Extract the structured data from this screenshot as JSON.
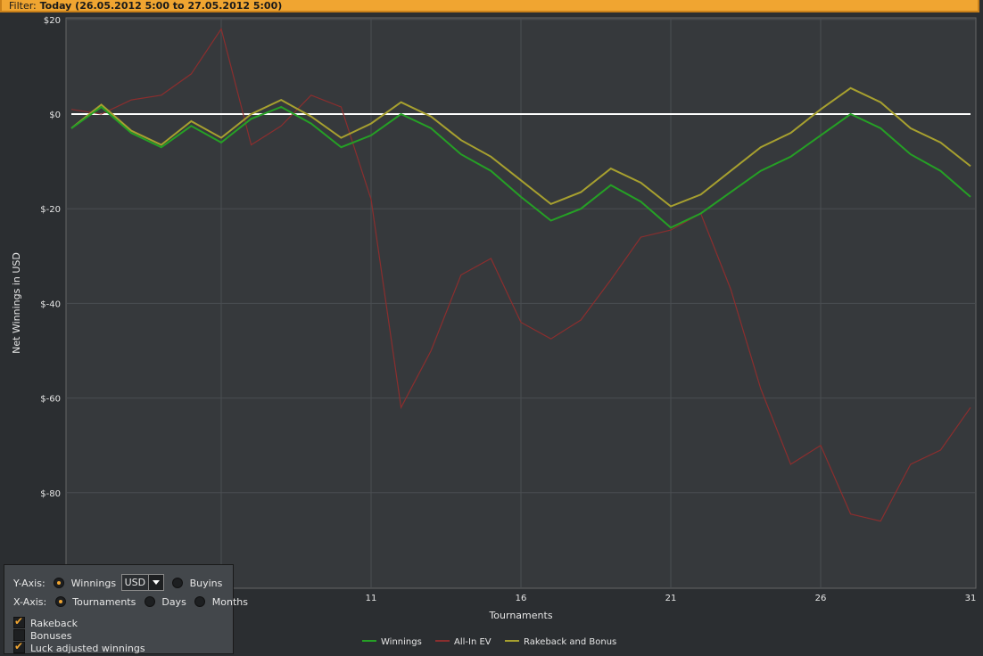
{
  "filter": {
    "label": "Filter:",
    "value": "Today (26.05.2012 5:00 to 27.05.2012 5:00)"
  },
  "colors": {
    "winnings": "#25a025",
    "allin_ev": "#8b2e2e",
    "rakeback": "#a7a02f",
    "zero": "#ffffff",
    "accent": "#f0a531"
  },
  "chart_data": {
    "type": "line",
    "ylabel": "Net Winnings in USD",
    "xlabel": "Tournaments",
    "ylim": [
      -100,
      20
    ],
    "xlim": [
      1,
      31
    ],
    "yticks": [
      20,
      0,
      -20,
      -40,
      -60,
      -80
    ],
    "ytick_labels": [
      "$20",
      "$0",
      "$-20",
      "$-40",
      "$-60",
      "$-80"
    ],
    "xticks": [
      11,
      16,
      21,
      26,
      31
    ],
    "xtick_labels": [
      "11",
      "16",
      "21",
      "26",
      "31"
    ],
    "grid": true,
    "legend_position": "bottom",
    "series": [
      {
        "name": "Winnings",
        "color": "#25a025",
        "x": [
          1,
          2,
          3,
          4,
          5,
          6,
          7,
          8,
          9,
          10,
          11,
          12,
          13,
          14,
          15,
          16,
          17,
          18,
          19,
          20,
          21,
          22,
          23,
          24,
          25,
          26,
          27,
          28,
          29,
          30,
          31
        ],
        "values": [
          -3,
          1.5,
          -4,
          -7,
          -2.5,
          -6,
          -1,
          1.5,
          -2,
          -7,
          -4.5,
          0,
          -3,
          -8.5,
          -12,
          -17.5,
          -22.5,
          -20,
          -15,
          -18.5,
          -24,
          -21,
          -16.5,
          -12,
          -9,
          -4.5,
          0,
          -3,
          -8.5,
          -12,
          -17.5
        ]
      },
      {
        "name": "All-In EV",
        "color": "#8b2e2e",
        "x": [
          1,
          2,
          3,
          4,
          5,
          6,
          7,
          8,
          9,
          10,
          11,
          12,
          13,
          14,
          15,
          16,
          17,
          18,
          19,
          20,
          21,
          22,
          23,
          24,
          25,
          26,
          27,
          28,
          29,
          30,
          31
        ],
        "values": [
          1,
          0,
          3,
          4,
          8.5,
          18,
          -6.5,
          -2.5,
          4,
          1.5,
          -18,
          -62,
          -50,
          -34,
          -30.5,
          -44,
          -47.5,
          -43.5,
          -35,
          -26,
          -24.5,
          -21,
          -37,
          -58,
          -74,
          -70,
          -84.5,
          -86,
          -74,
          -71,
          -62
        ]
      },
      {
        "name": "Rakeback and Bonus",
        "color": "#a7a02f",
        "x": [
          1,
          2,
          3,
          4,
          5,
          6,
          7,
          8,
          9,
          10,
          11,
          12,
          13,
          14,
          15,
          16,
          17,
          18,
          19,
          20,
          21,
          22,
          23,
          24,
          25,
          26,
          27,
          28,
          29,
          30,
          31
        ],
        "values": [
          -3,
          2,
          -3.5,
          -6.5,
          -1.5,
          -5,
          0,
          3,
          -0.5,
          -5,
          -2,
          2.5,
          -0.5,
          -5.5,
          -9,
          -14,
          -19,
          -16.5,
          -11.5,
          -14.5,
          -19.5,
          -17,
          -12,
          -7,
          -4,
          1,
          5.5,
          2.5,
          -3,
          -6,
          -11
        ]
      }
    ]
  },
  "controls": {
    "y_axis_label": "Y-Axis:",
    "y_winnings": "Winnings",
    "currency": "USD",
    "y_buyins": "Buyins",
    "x_axis_label": "X-Axis:",
    "x_tournaments": "Tournaments",
    "x_days": "Days",
    "x_months": "Months",
    "rakeback": "Rakeback",
    "bonuses": "Bonuses",
    "luck_adjusted": "Luck adjusted winnings"
  }
}
